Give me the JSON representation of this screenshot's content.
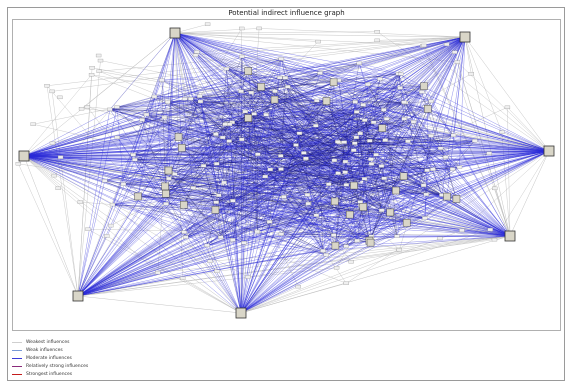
{
  "title": "Potential indirect influence graph",
  "legend": [
    {
      "label": "Weakest influences",
      "color": "#cfcfcf"
    },
    {
      "label": "Weak influences",
      "color": "#7a9ad6"
    },
    {
      "label": "Moderate influences",
      "color": "#3a3ad8"
    },
    {
      "label": "Relatively strong influences",
      "color": "#8a2a7a"
    },
    {
      "label": "Strongest influences",
      "color": "#c41c1c"
    }
  ],
  "colors": {
    "hub_edge": "#2b2bd9",
    "dense_edge": "#141464",
    "weak_edge": "#b5b5b5",
    "node_fill": "#d9d6c8",
    "node_stroke": "#555555"
  }
}
